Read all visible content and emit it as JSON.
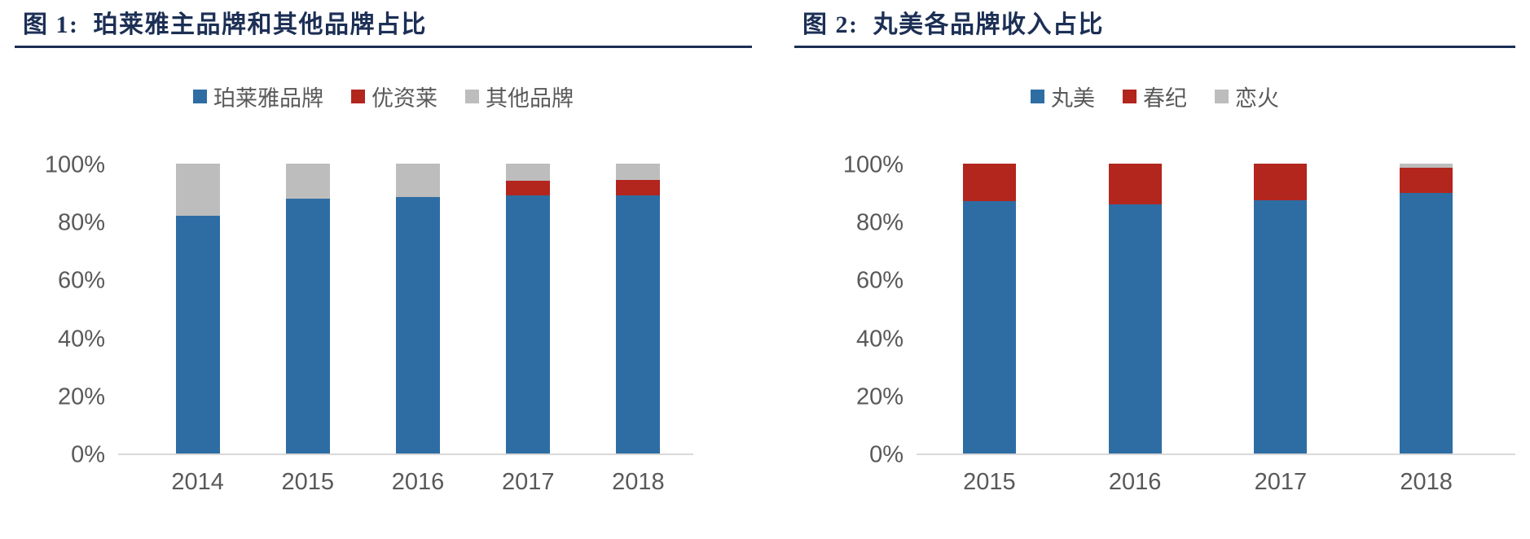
{
  "figures": [
    {
      "title": "图 1:  珀莱雅主品牌和其他品牌占比"
    },
    {
      "title": "图 2:  丸美各品牌收入占比"
    }
  ],
  "colors": {
    "blue": "#2E6DA4",
    "red": "#B2261D",
    "gray": "#BDBDBD",
    "title_navy": "#1C2F55",
    "axis_text": "#595959",
    "baseline": "#D9D9D9"
  },
  "chart_data": [
    {
      "type": "bar",
      "stacked": true,
      "title": "图 1: 珀莱雅主品牌和其他品牌占比",
      "categories": [
        "2014",
        "2015",
        "2016",
        "2017",
        "2018"
      ],
      "series": [
        {
          "name": "珀莱雅品牌",
          "color_key": "blue",
          "values": [
            82,
            88,
            88.5,
            89,
            89
          ]
        },
        {
          "name": "优资莱",
          "color_key": "red",
          "values": [
            0,
            0,
            0,
            5,
            5.5
          ]
        },
        {
          "name": "其他品牌",
          "color_key": "gray",
          "values": [
            18,
            12,
            11.5,
            6,
            5.5
          ]
        }
      ],
      "xlabel": "",
      "ylabel": "",
      "ylim": [
        0,
        100
      ],
      "yticks": [
        "0%",
        "20%",
        "40%",
        "60%",
        "80%",
        "100%"
      ],
      "unit": "percent",
      "grid": false,
      "legend_position": "top"
    },
    {
      "type": "bar",
      "stacked": true,
      "title": "图 2: 丸美各品牌收入占比",
      "categories": [
        "2015",
        "2016",
        "2017",
        "2018"
      ],
      "series": [
        {
          "name": "丸美",
          "color_key": "blue",
          "values": [
            87,
            86,
            87.5,
            90
          ]
        },
        {
          "name": "春纪",
          "color_key": "red",
          "values": [
            13,
            14,
            12.5,
            8.5
          ]
        },
        {
          "name": "恋火",
          "color_key": "gray",
          "values": [
            0,
            0,
            0,
            1.5
          ]
        }
      ],
      "xlabel": "",
      "ylabel": "",
      "ylim": [
        0,
        100
      ],
      "yticks": [
        "0%",
        "20%",
        "40%",
        "60%",
        "80%",
        "100%"
      ],
      "unit": "percent",
      "grid": false,
      "legend_position": "top"
    }
  ]
}
